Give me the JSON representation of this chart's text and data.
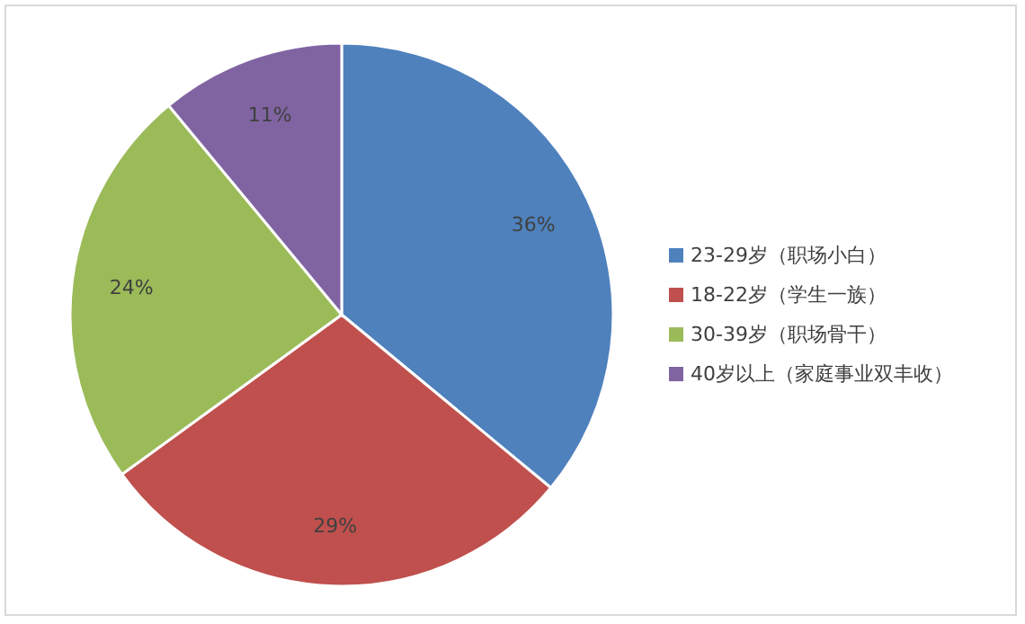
{
  "chart_data": {
    "type": "pie",
    "categories": [
      "23-29岁（职场小白）",
      "18-22岁（学生一族）",
      "30-39岁（职场骨干）",
      "40岁以上（家庭事业双丰收）"
    ],
    "values": [
      36,
      29,
      24,
      11
    ],
    "colors": [
      "#4f81bd",
      "#c0504d",
      "#9bbb59",
      "#8064a2"
    ],
    "value_labels": [
      "36%",
      "29%",
      "24%",
      "11%"
    ],
    "legend": "right"
  }
}
